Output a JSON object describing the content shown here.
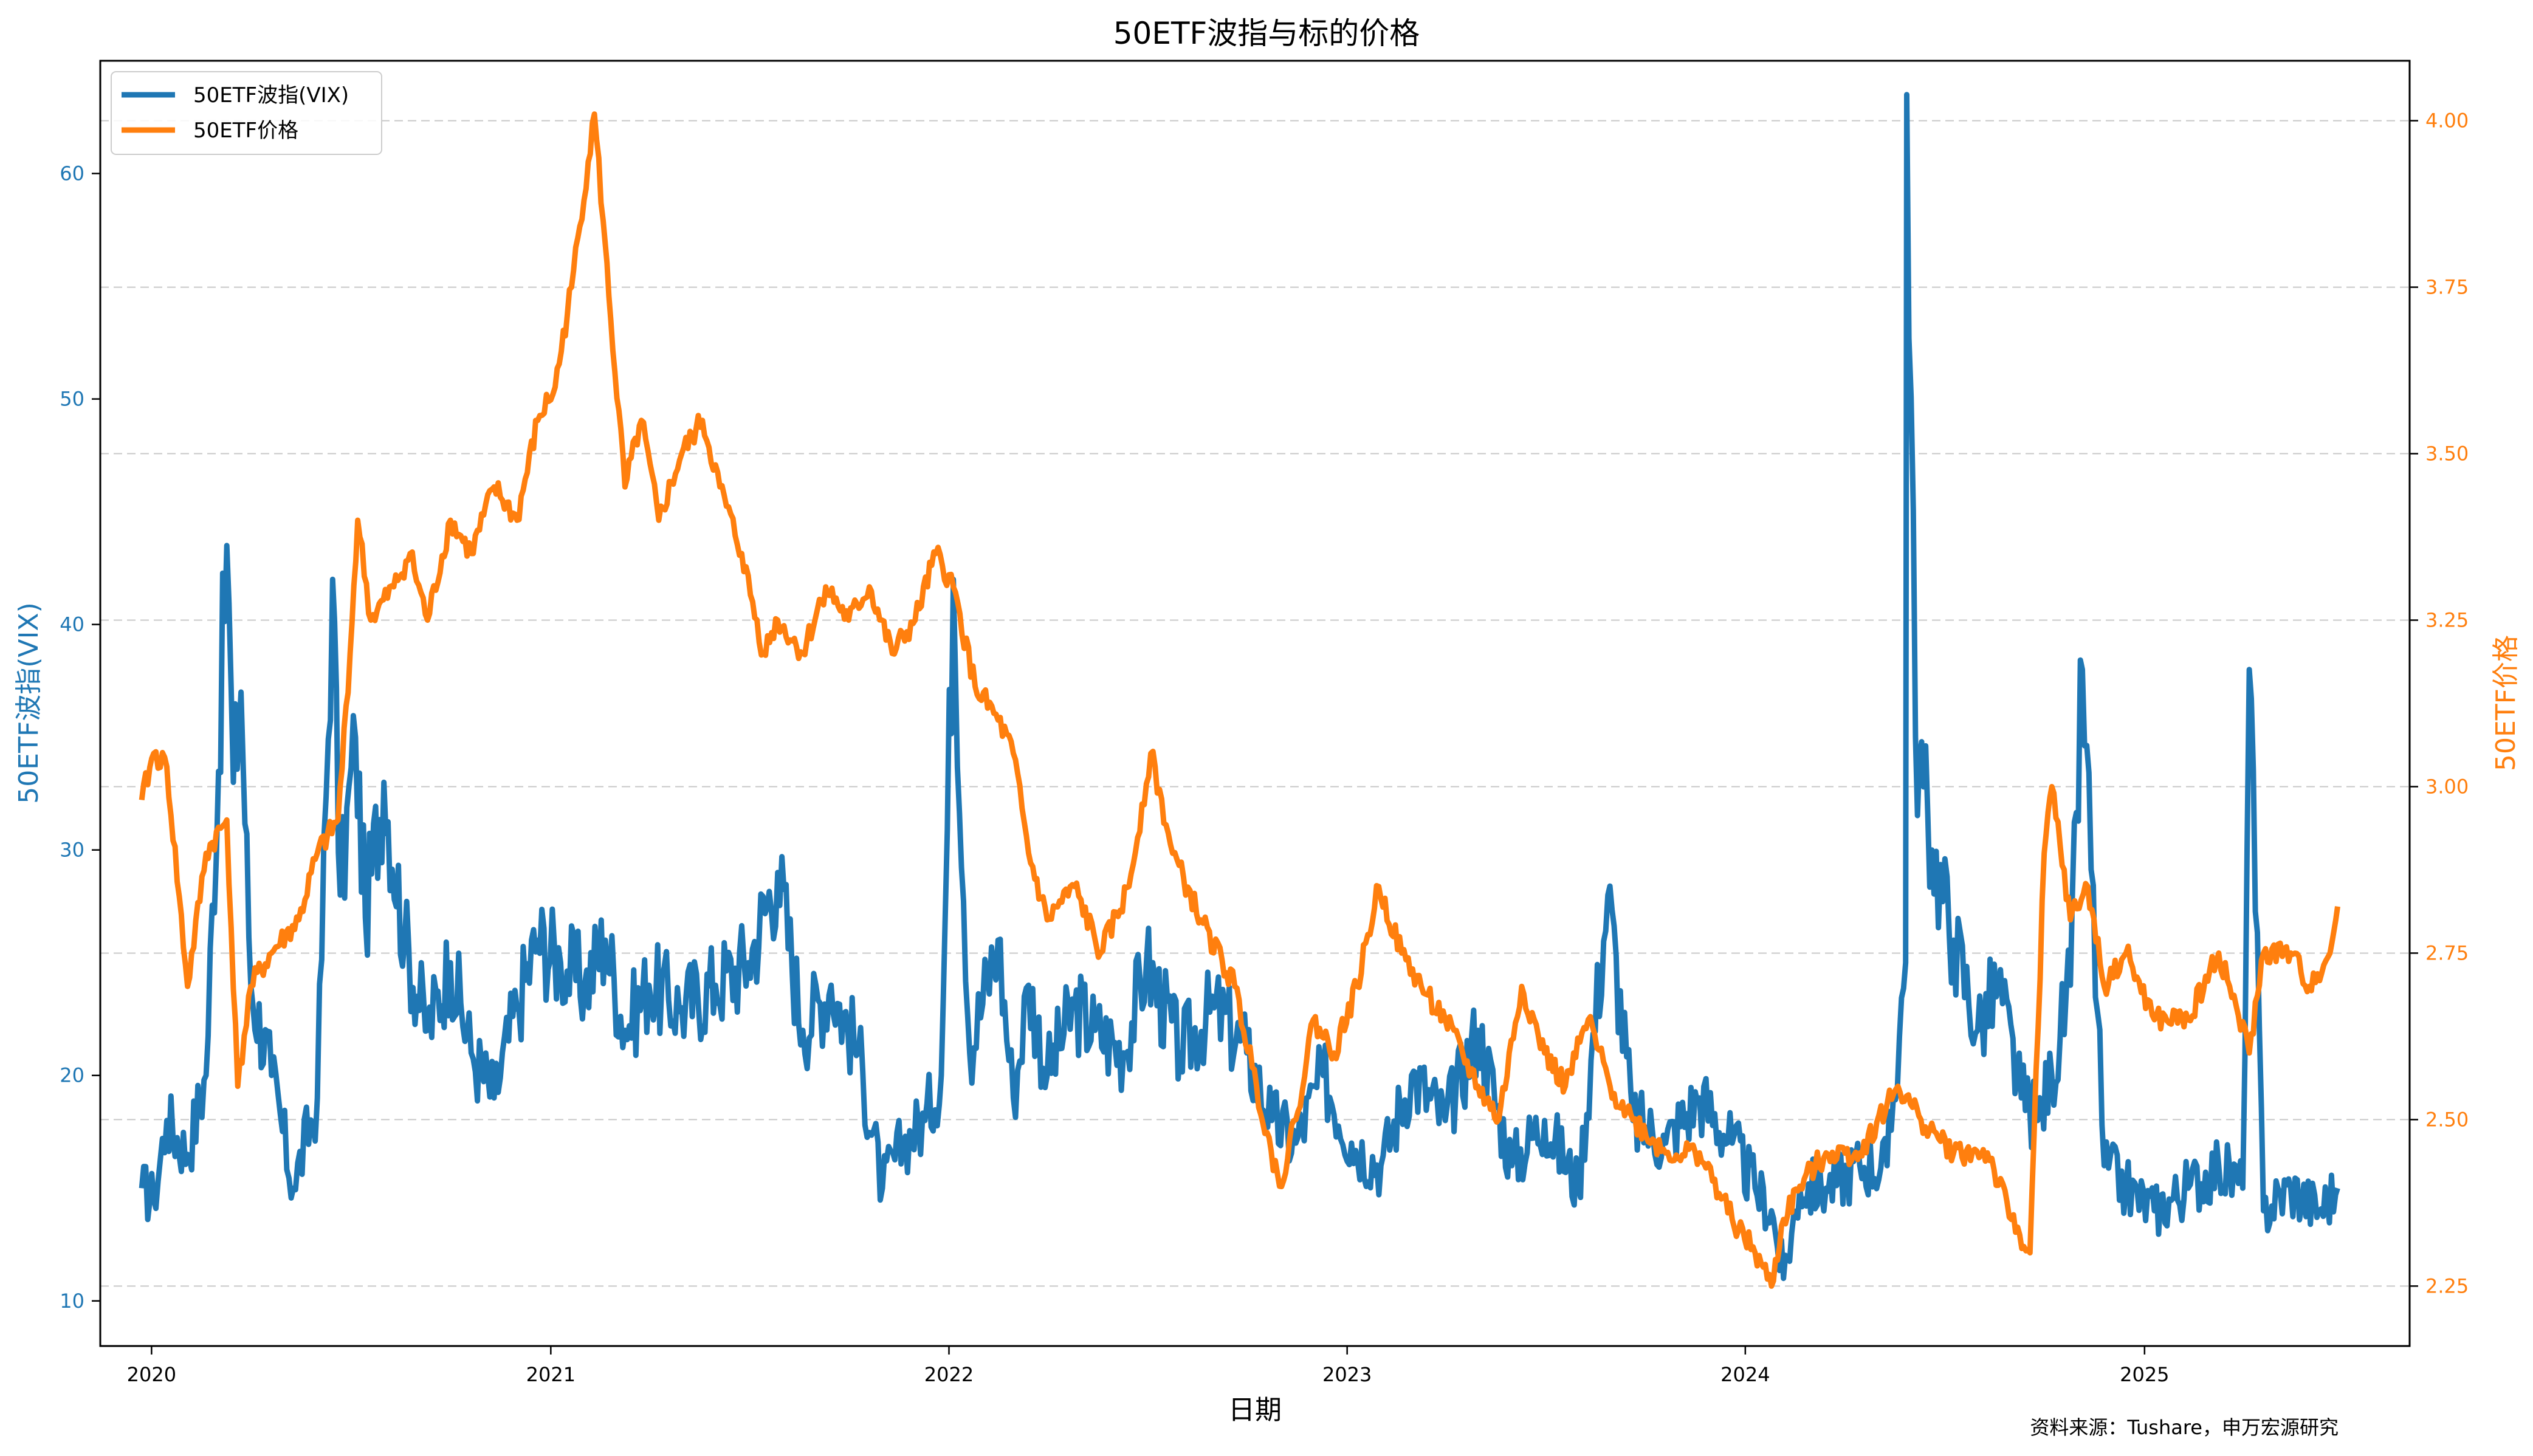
{
  "chart_data": {
    "type": "line",
    "title": "50ETF波指与标的价格",
    "xlabel": "日期",
    "ylabel_left": "50ETF波指(VIX)",
    "ylabel_right": "50ETF价格",
    "source_note": "资料来源：Tushare，申万宏源研究",
    "legend_position": "top-left",
    "grid": "horizontal dashed (right axis ticks)",
    "x_range": [
      "2019-11-15",
      "2025-09-01"
    ],
    "x_ticks": [
      "2020",
      "2021",
      "2022",
      "2023",
      "2024",
      "2025"
    ],
    "y_left_range": [
      8,
      65
    ],
    "y_left_ticks": [
      "10",
      "20",
      "30",
      "40",
      "50",
      "60"
    ],
    "y_right_range": [
      2.16,
      4.09
    ],
    "y_right_ticks": [
      "2.25",
      "2.50",
      "2.75",
      "3.00",
      "3.25",
      "3.50",
      "3.75",
      "4.00"
    ],
    "colors": {
      "vix": "#1f77b4",
      "price": "#ff7f0e"
    },
    "series": [
      {
        "name": "50ETF波指(VIX)",
        "axis": "left",
        "x": [
          "2019-12-23",
          "2020-01-03",
          "2020-01-15",
          "2020-02-03",
          "2020-02-20",
          "2020-03-10",
          "2020-03-16",
          "2020-03-23",
          "2020-04-01",
          "2020-04-20",
          "2020-05-10",
          "2020-06-01",
          "2020-06-15",
          "2020-06-22",
          "2020-07-06",
          "2020-07-15",
          "2020-08-01",
          "2020-08-20",
          "2020-09-10",
          "2020-10-01",
          "2020-10-20",
          "2020-11-10",
          "2020-12-01",
          "2020-12-20",
          "2021-01-10",
          "2021-02-01",
          "2021-02-20",
          "2021-03-10",
          "2021-04-01",
          "2021-05-01",
          "2021-06-01",
          "2021-07-01",
          "2021-07-28",
          "2021-08-20",
          "2021-09-15",
          "2021-10-10",
          "2021-11-01",
          "2021-11-20",
          "2021-12-10",
          "2021-12-25",
          "2022-01-05",
          "2022-01-20",
          "2022-02-15",
          "2022-03-01",
          "2022-03-15",
          "2022-04-01",
          "2022-04-26",
          "2022-05-15",
          "2022-06-10",
          "2022-07-01",
          "2022-08-01",
          "2022-09-01",
          "2022-10-01",
          "2022-10-24",
          "2022-11-15",
          "2022-12-10",
          "2023-01-05",
          "2023-02-01",
          "2023-03-01",
          "2023-04-01",
          "2023-05-01",
          "2023-06-01",
          "2023-07-01",
          "2023-08-01",
          "2023-08-28",
          "2023-09-20",
          "2023-10-20",
          "2023-11-20",
          "2023-12-20",
          "2024-01-10",
          "2024-01-25",
          "2024-02-05",
          "2024-02-20",
          "2024-03-15",
          "2024-04-15",
          "2024-05-10",
          "2024-05-27",
          "2024-05-28",
          "2024-06-05",
          "2024-06-20",
          "2024-07-10",
          "2024-08-01",
          "2024-08-20",
          "2024-09-10",
          "2024-09-25",
          "2024-10-08",
          "2024-10-25",
          "2024-11-05",
          "2024-11-25",
          "2024-12-15",
          "2025-01-10",
          "2025-02-10",
          "2025-03-10",
          "2025-04-01",
          "2025-04-07",
          "2025-04-20",
          "2025-05-15",
          "2025-06-10",
          "2025-06-27"
        ],
        "values": [
          15,
          14.5,
          18,
          16.5,
          20,
          43.5,
          33,
          37,
          24,
          20,
          15,
          19,
          42,
          28,
          35,
          27,
          33,
          26,
          22,
          25,
          21,
          19,
          23,
          26,
          25,
          24,
          26,
          22,
          24,
          23,
          24,
          25,
          29,
          22,
          24,
          21,
          15,
          17,
          18,
          20,
          42,
          21,
          26,
          19,
          24,
          20,
          23,
          22,
          21,
          25,
          21,
          23,
          21,
          18,
          17,
          20,
          17,
          16,
          20,
          18,
          22,
          16,
          18,
          15,
          28,
          18,
          17,
          19,
          17,
          15,
          14,
          11,
          15,
          15,
          16,
          16,
          25,
          63.5,
          35,
          30,
          26,
          22,
          24,
          19,
          18,
          20,
          24,
          38,
          16,
          15,
          14,
          15,
          16,
          15,
          38,
          14,
          15,
          14,
          15
        ]
      },
      {
        "name": "50ETF价格",
        "axis": "right",
        "x": [
          "2019-12-23",
          "2020-01-03",
          "2020-01-15",
          "2020-02-03",
          "2020-02-20",
          "2020-03-10",
          "2020-03-20",
          "2020-04-01",
          "2020-04-20",
          "2020-05-15",
          "2020-06-01",
          "2020-06-20",
          "2020-07-01",
          "2020-07-08",
          "2020-07-20",
          "2020-08-10",
          "2020-08-25",
          "2020-09-10",
          "2020-10-01",
          "2020-10-20",
          "2020-11-10",
          "2020-12-01",
          "2020-12-20",
          "2021-01-05",
          "2021-01-20",
          "2021-02-10",
          "2021-02-18",
          "2021-02-25",
          "2021-03-10",
          "2021-03-25",
          "2021-04-10",
          "2021-05-01",
          "2021-05-20",
          "2021-06-05",
          "2021-06-25",
          "2021-07-15",
          "2021-07-28",
          "2021-08-20",
          "2021-09-10",
          "2021-10-01",
          "2021-10-20",
          "2021-11-10",
          "2021-12-01",
          "2021-12-20",
          "2022-01-05",
          "2022-01-25",
          "2022-02-15",
          "2022-03-01",
          "2022-03-15",
          "2022-04-01",
          "2022-04-26",
          "2022-05-20",
          "2022-06-15",
          "2022-07-05",
          "2022-07-25",
          "2022-08-20",
          "2022-09-20",
          "2022-10-10",
          "2022-10-31",
          "2022-11-15",
          "2022-12-01",
          "2022-12-20",
          "2023-01-10",
          "2023-01-30",
          "2023-02-20",
          "2023-03-10",
          "2023-04-01",
          "2023-05-01",
          "2023-05-20",
          "2023-06-10",
          "2023-07-01",
          "2023-07-20",
          "2023-08-10",
          "2023-08-30",
          "2023-09-20",
          "2023-10-20",
          "2023-11-20",
          "2023-12-20",
          "2024-01-10",
          "2024-01-25",
          "2024-02-05",
          "2024-02-20",
          "2024-03-15",
          "2024-04-15",
          "2024-05-20",
          "2024-06-10",
          "2024-07-10",
          "2024-08-10",
          "2024-09-01",
          "2024-09-18",
          "2024-10-01",
          "2024-10-08",
          "2024-10-25",
          "2024-11-10",
          "2024-11-25",
          "2024-12-15",
          "2025-01-10",
          "2025-02-10",
          "2025-03-10",
          "2025-03-20",
          "2025-04-07",
          "2025-04-20",
          "2025-05-15",
          "2025-06-01",
          "2025-06-20",
          "2025-06-27"
        ],
        "values": [
          2.98,
          3.05,
          3.03,
          2.7,
          2.9,
          2.95,
          2.55,
          2.7,
          2.75,
          2.8,
          2.9,
          2.95,
          3.2,
          3.4,
          3.25,
          3.3,
          3.35,
          3.25,
          3.4,
          3.35,
          3.45,
          3.4,
          3.55,
          3.6,
          3.75,
          4.01,
          3.85,
          3.7,
          3.45,
          3.55,
          3.4,
          3.5,
          3.55,
          3.45,
          3.35,
          3.2,
          3.25,
          3.2,
          3.3,
          3.25,
          3.3,
          3.2,
          3.25,
          3.35,
          3.3,
          3.15,
          3.1,
          3.05,
          2.9,
          2.8,
          2.85,
          2.75,
          2.85,
          3.05,
          2.9,
          2.8,
          2.7,
          2.55,
          2.4,
          2.5,
          2.65,
          2.6,
          2.7,
          2.85,
          2.75,
          2.7,
          2.65,
          2.55,
          2.5,
          2.7,
          2.6,
          2.55,
          2.65,
          2.55,
          2.5,
          2.45,
          2.45,
          2.35,
          2.3,
          2.25,
          2.35,
          2.4,
          2.45,
          2.45,
          2.55,
          2.5,
          2.45,
          2.45,
          2.35,
          2.3,
          2.9,
          3.0,
          2.8,
          2.85,
          2.7,
          2.75,
          2.65,
          2.65,
          2.75,
          2.7,
          2.6,
          2.75,
          2.75,
          2.7,
          2.75,
          2.82
        ]
      }
    ]
  }
}
